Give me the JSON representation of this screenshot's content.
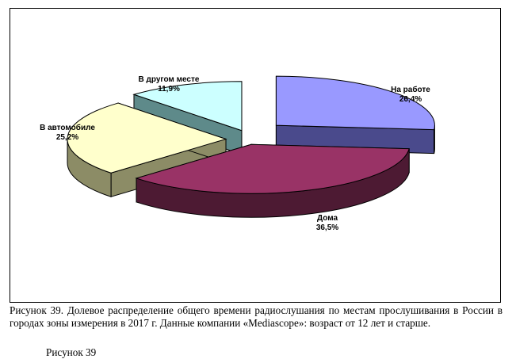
{
  "chart_data": {
    "type": "pie",
    "style": "3d-exploded",
    "slices": [
      {
        "label": "На работе",
        "value": "26,4%",
        "pct": 26.4,
        "color": "#9999ff",
        "shade": "#4a4a8c"
      },
      {
        "label": "Дома",
        "value": "36,5%",
        "pct": 36.5,
        "color": "#993366",
        "shade": "#4d1a33"
      },
      {
        "label": "В автомобиле",
        "value": "25,2%",
        "pct": 25.2,
        "color": "#ffffcc",
        "shade": "#8c8c66"
      },
      {
        "label": "В другом месте",
        "value": "11,9%",
        "pct": 11.9,
        "color": "#ccffff",
        "shade": "#5e8a8a"
      }
    ]
  },
  "caption": "Рисунок 39. Долевое распределение общего времени радиослушания по местам прослушивания в России в городах зоны измерения в 2017 г. Данные компании «Mediascope»: возраст от 12 лет и старше.",
  "caption_next_partial": "Рисунок 39"
}
